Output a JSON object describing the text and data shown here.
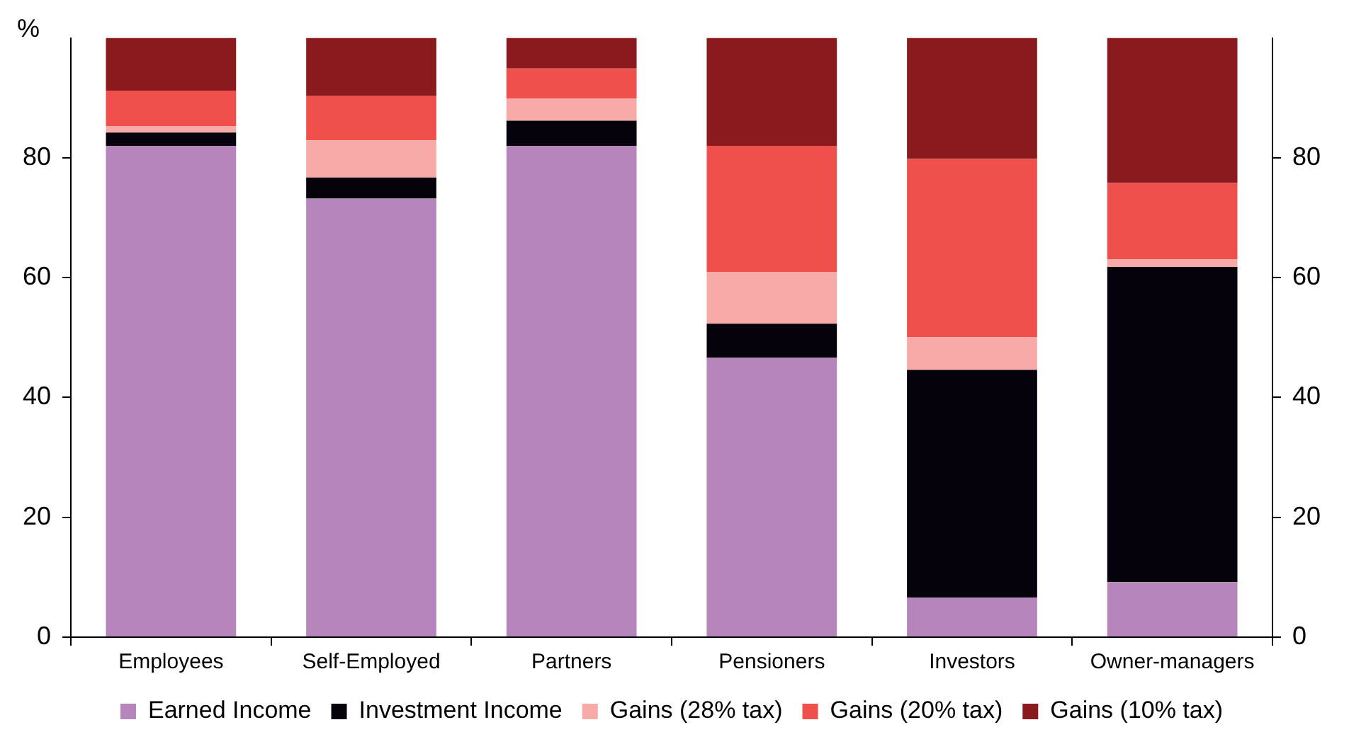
{
  "chart_data": {
    "type": "bar",
    "stacked": true,
    "ylabel": "%",
    "categories": [
      "Employees",
      "Self-Employed",
      "Partners",
      "Pensioners",
      "Investors",
      "Owner-managers"
    ],
    "series": [
      {
        "name": "Earned Income",
        "color": "#b685bb",
        "values": [
          82,
          73.2,
          82,
          46.6,
          6.6,
          9.2
        ]
      },
      {
        "name": "Investment Income",
        "color": "#06020c",
        "values": [
          2.2,
          3.5,
          4.2,
          5.7,
          38,
          52.6
        ]
      },
      {
        "name": "Gains (28% tax)",
        "color": "#f7aaa8",
        "values": [
          1.1,
          6.2,
          3.7,
          8.6,
          5.5,
          1.3
        ]
      },
      {
        "name": "Gains (20% tax)",
        "color": "#f0504b",
        "values": [
          5.9,
          7.4,
          5,
          21.1,
          29.7,
          12.7
        ]
      },
      {
        "name": "Gains (10% tax)",
        "color": "#8a1a1d",
        "values": [
          8.8,
          9.7,
          5.1,
          18,
          20.2,
          24.2
        ]
      }
    ],
    "ylim": [
      0,
      100
    ],
    "yticks": [
      0,
      20,
      40,
      60,
      80
    ],
    "y2lim": [
      0,
      100
    ],
    "y2ticks": [
      0,
      20,
      40,
      60,
      80
    ],
    "grid": false,
    "legend": "bottom"
  }
}
